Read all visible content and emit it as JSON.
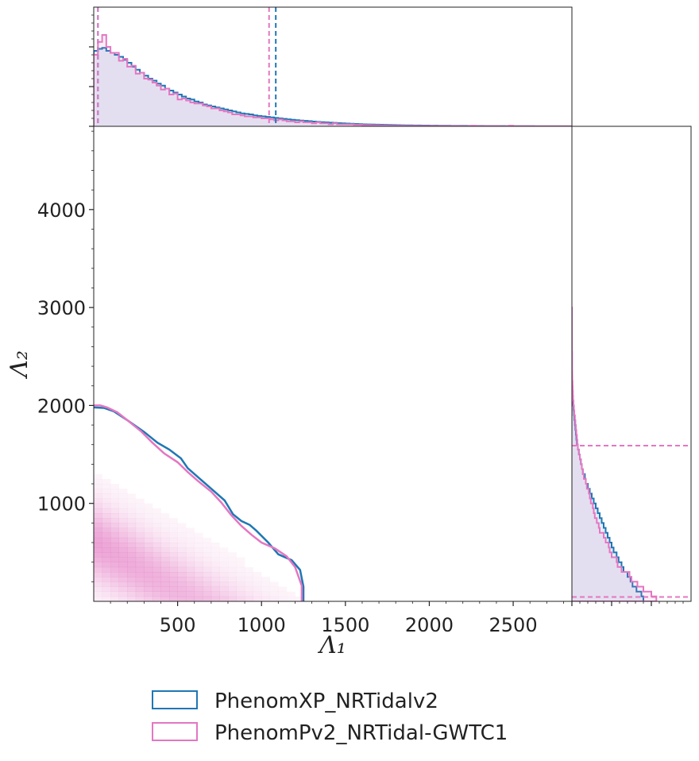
{
  "chart_data": {
    "type": "corner",
    "xlabel": "Λ₁",
    "ylabel": "Λ₂",
    "x_ticks": [
      500,
      1000,
      1500,
      2000,
      2500
    ],
    "y_ticks": [
      1000,
      2000,
      3000,
      4000
    ],
    "xlim": [
      0,
      2850
    ],
    "ylim": [
      0,
      4850
    ],
    "series": [
      {
        "name": "PhenomXP_NRTidalv2",
        "color": "#1f77b4",
        "contour_90": [
          [
            0,
            1980
          ],
          [
            60,
            1975
          ],
          [
            120,
            1940
          ],
          [
            200,
            1850
          ],
          [
            300,
            1730
          ],
          [
            380,
            1620
          ],
          [
            450,
            1550
          ],
          [
            520,
            1460
          ],
          [
            560,
            1360
          ],
          [
            620,
            1270
          ],
          [
            700,
            1150
          ],
          [
            780,
            1030
          ],
          [
            830,
            890
          ],
          [
            880,
            820
          ],
          [
            930,
            780
          ],
          [
            970,
            720
          ],
          [
            1040,
            600
          ],
          [
            1100,
            480
          ],
          [
            1180,
            420
          ],
          [
            1230,
            320
          ],
          [
            1250,
            150
          ],
          [
            1250,
            0
          ]
        ],
        "lambda1_interval": [
          25,
          1085
        ],
        "lambda2_interval": [
          45,
          1590
        ],
        "lambda1_hist": {
          "bin_width": 25,
          "density": [
            0.76,
            0.78,
            0.79,
            0.76,
            0.74,
            0.72,
            0.7,
            0.67,
            0.64,
            0.6,
            0.57,
            0.54,
            0.51,
            0.48,
            0.46,
            0.43,
            0.41,
            0.38,
            0.36,
            0.34,
            0.32,
            0.3,
            0.28,
            0.27,
            0.25,
            0.24,
            0.22,
            0.21,
            0.2,
            0.19,
            0.18,
            0.17,
            0.16,
            0.15,
            0.14,
            0.13,
            0.125,
            0.12,
            0.11,
            0.105,
            0.1,
            0.095,
            0.09,
            0.085,
            0.08,
            0.075,
            0.07,
            0.066,
            0.062,
            0.058,
            0.055,
            0.052,
            0.048,
            0.045,
            0.042,
            0.04,
            0.037,
            0.035,
            0.032,
            0.03,
            0.028,
            0.026,
            0.024,
            0.022,
            0.02,
            0.019,
            0.018,
            0.017,
            0.016,
            0.015,
            0.014,
            0.013,
            0.012,
            0.011,
            0.01,
            0.01,
            0.009,
            0.009,
            0.008,
            0.008,
            0.007,
            0.007,
            0.006,
            0.006,
            0.006,
            0.005,
            0.005,
            0.005,
            0.005,
            0.004,
            0.004,
            0.004,
            0.004,
            0.003,
            0.003,
            0.003,
            0.003,
            0.003,
            0.002,
            0.002,
            0.002,
            0.002,
            0.002,
            0.002,
            0.002,
            0.001,
            0.001,
            0.001,
            0.001,
            0.001,
            0.001,
            0.001,
            0.001,
            0.001
          ]
        },
        "lambda2_hist": {
          "bin_width": 50,
          "density": [
            0.72,
            0.7,
            0.65,
            0.61,
            0.59,
            0.56,
            0.52,
            0.5,
            0.47,
            0.45,
            0.42,
            0.4,
            0.38,
            0.36,
            0.34,
            0.32,
            0.3,
            0.28,
            0.26,
            0.24,
            0.22,
            0.2,
            0.18,
            0.16,
            0.14,
            0.13,
            0.11,
            0.1,
            0.09,
            0.08,
            0.07,
            0.06,
            0.05,
            0.045,
            0.04,
            0.035,
            0.03,
            0.025,
            0.02,
            0.016,
            0.012,
            0.009,
            0.006,
            0.004,
            0.002,
            0.001
          ]
        }
      },
      {
        "name": "PhenomPv2_NRTidal-GWTC1",
        "color": "#e377c2",
        "contour_90": [
          [
            0,
            2000
          ],
          [
            40,
            2000
          ],
          [
            80,
            1980
          ],
          [
            140,
            1930
          ],
          [
            200,
            1850
          ],
          [
            280,
            1740
          ],
          [
            350,
            1620
          ],
          [
            420,
            1510
          ],
          [
            500,
            1420
          ],
          [
            560,
            1320
          ],
          [
            620,
            1230
          ],
          [
            700,
            1120
          ],
          [
            760,
            1010
          ],
          [
            820,
            880
          ],
          [
            880,
            770
          ],
          [
            940,
            680
          ],
          [
            1000,
            600
          ],
          [
            1080,
            540
          ],
          [
            1150,
            460
          ],
          [
            1200,
            350
          ],
          [
            1240,
            160
          ],
          [
            1240,
            0
          ]
        ],
        "lambda1_interval": [
          25,
          1045
        ],
        "lambda2_interval": [
          45,
          1590
        ],
        "lambda1_hist": {
          "bin_width": 25,
          "density": [
            0.72,
            0.85,
            0.92,
            0.8,
            0.74,
            0.74,
            0.66,
            0.68,
            0.6,
            0.61,
            0.53,
            0.54,
            0.48,
            0.47,
            0.44,
            0.41,
            0.37,
            0.38,
            0.32,
            0.33,
            0.27,
            0.28,
            0.26,
            0.24,
            0.23,
            0.23,
            0.21,
            0.2,
            0.18,
            0.18,
            0.16,
            0.15,
            0.14,
            0.12,
            0.12,
            0.11,
            0.1,
            0.1,
            0.09,
            0.09,
            0.08,
            0.08,
            0.07,
            0.06,
            0.07,
            0.06,
            0.05,
            0.05,
            0.04,
            0.05,
            0.04,
            0.04,
            0.03,
            0.04,
            0.03,
            0.03,
            0.02,
            0.03,
            0.02,
            0.02,
            0.02,
            0.02,
            0.015,
            0.015,
            0.012,
            0.012,
            0.01,
            0.01,
            0.008,
            0.008,
            0.007,
            0.006,
            0.006,
            0.006,
            0.005,
            0.005,
            0.005,
            0.004,
            0.004,
            0.004,
            0.004,
            0.003,
            0.003,
            0.003,
            0.003,
            0.003,
            0.003,
            0.002,
            0.002,
            0.002,
            0.006,
            0.002,
            0.002,
            0.002,
            0.002,
            0.002,
            0.002,
            0.001,
            0.001,
            0.006,
            0.001,
            0.001,
            0.001,
            0.001,
            0.001,
            0.001,
            0.001,
            0.001,
            0.001,
            0.001,
            0.001,
            0.001,
            0.001,
            0.001
          ]
        },
        "lambda2_hist": {
          "bin_width": 50,
          "density": [
            0.85,
            0.8,
            0.72,
            0.66,
            0.6,
            0.58,
            0.5,
            0.46,
            0.45,
            0.4,
            0.38,
            0.37,
            0.34,
            0.32,
            0.28,
            0.27,
            0.25,
            0.23,
            0.22,
            0.21,
            0.19,
            0.18,
            0.17,
            0.15,
            0.14,
            0.12,
            0.11,
            0.1,
            0.09,
            0.08,
            0.07,
            0.06,
            0.055,
            0.05,
            0.045,
            0.04,
            0.035,
            0.03,
            0.024,
            0.02,
            0.016,
            0.012,
            0.01,
            0.008,
            0.006,
            0.004,
            0.003,
            0.002,
            0.002,
            0.002,
            0.002,
            0.001,
            0.001,
            0.001,
            0.001,
            0.001,
            0.001,
            0.001,
            0.001,
            0.001
          ]
        }
      }
    ],
    "legend": {
      "placement": "bottom-center"
    },
    "grid": false
  }
}
